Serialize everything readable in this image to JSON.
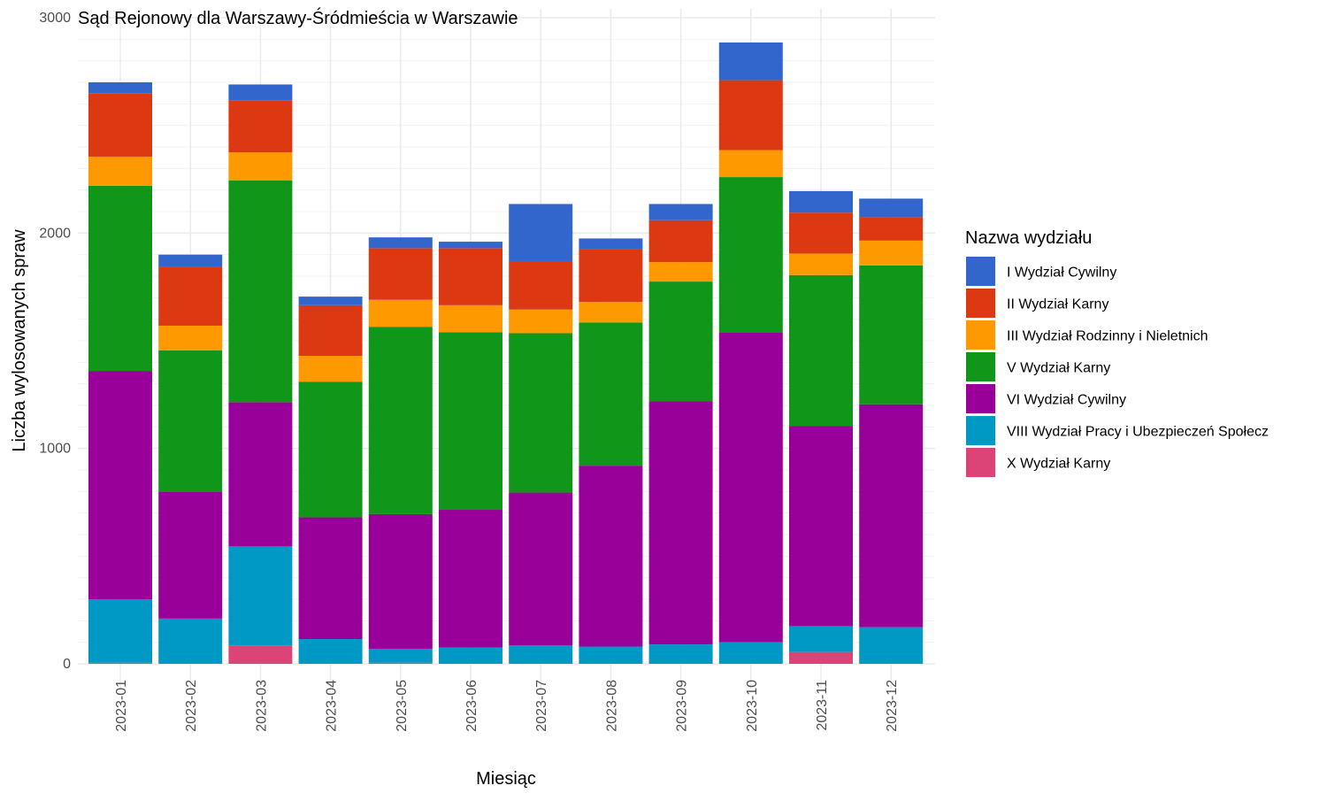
{
  "chart_data": {
    "type": "bar",
    "stacked": true,
    "title": "Sąd Rejonowy dla Warszawy-Śródmieścia w Warszawie",
    "xlabel": "Miesiąc",
    "ylabel": "Liczba wylosowanych spraw",
    "ylim": [
      0,
      3000
    ],
    "yticks": [
      0,
      1000,
      2000,
      3000
    ],
    "grid": true,
    "legend": {
      "title": "Nazwa wydziału",
      "position": "right"
    },
    "categories": [
      "2023-01",
      "2023-02",
      "2023-03",
      "2023-04",
      "2023-05",
      "2023-06",
      "2023-07",
      "2023-08",
      "2023-09",
      "2023-10",
      "2023-11",
      "2023-12"
    ],
    "series": [
      {
        "name": "X Wydział Karny",
        "color": "#dc4477",
        "values": [
          5,
          0,
          85,
          0,
          5,
          0,
          0,
          0,
          0,
          0,
          55,
          0
        ]
      },
      {
        "name": "VIII Wydział Pracy i Ubezpieczeń Społecz",
        "color": "#0099c6",
        "values": [
          295,
          210,
          460,
          115,
          65,
          75,
          85,
          80,
          90,
          100,
          120,
          170
        ]
      },
      {
        "name": "VI Wydział Cywilny",
        "color": "#990099",
        "values": [
          1060,
          590,
          670,
          565,
          625,
          640,
          710,
          840,
          1130,
          1440,
          930,
          1035
        ]
      },
      {
        "name": "V Wydział Karny",
        "color": "#109618",
        "values": [
          860,
          655,
          1030,
          630,
          870,
          825,
          740,
          665,
          555,
          720,
          700,
          645
        ]
      },
      {
        "name": "III Wydział Rodzinny i Nieletnich",
        "color": "#ff9900",
        "values": [
          135,
          115,
          130,
          120,
          125,
          125,
          110,
          95,
          90,
          125,
          100,
          115
        ]
      },
      {
        "name": "II Wydział Karny",
        "color": "#dc3912",
        "values": [
          295,
          275,
          240,
          235,
          240,
          265,
          225,
          245,
          195,
          325,
          190,
          110
        ]
      },
      {
        "name": "I Wydział Cywilny",
        "color": "#3366cc",
        "values": [
          50,
          55,
          75,
          40,
          50,
          30,
          265,
          50,
          75,
          175,
          100,
          85
        ]
      }
    ],
    "legend_order": [
      "I Wydział Cywilny",
      "II Wydział Karny",
      "III Wydział Rodzinny i Nieletnich",
      "V Wydział Karny",
      "VI Wydział Cywilny",
      "VIII Wydział Pracy i Ubezpieczeń Społecz",
      "X Wydział Karny"
    ]
  }
}
